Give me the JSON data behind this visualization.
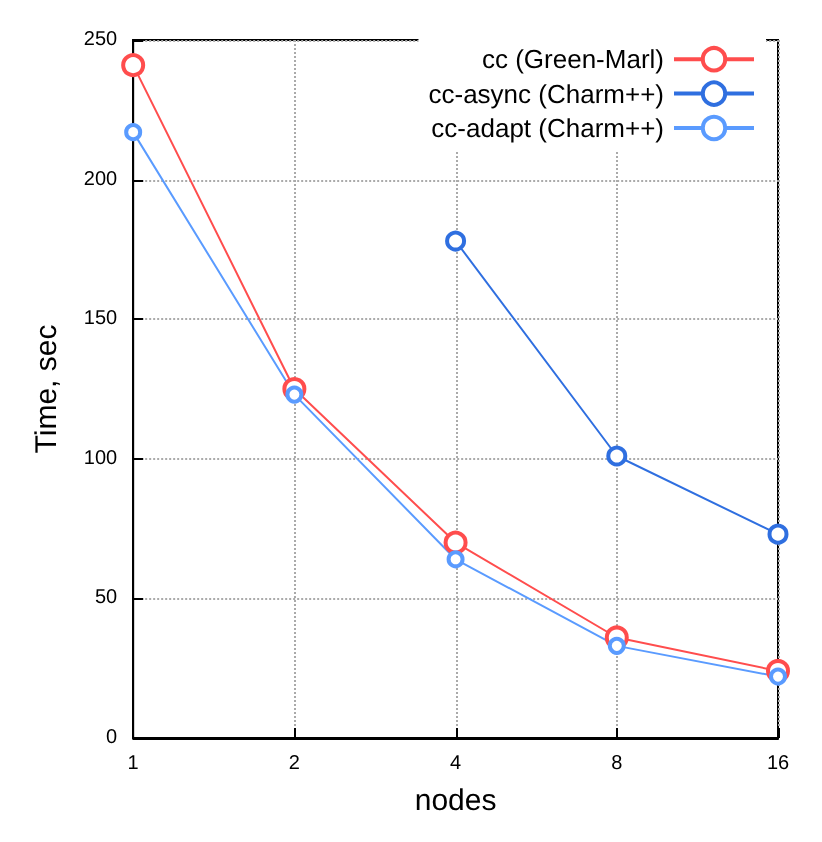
{
  "chart_data": {
    "type": "line",
    "xlabel": "nodes",
    "ylabel": "Time, sec",
    "log": "x",
    "xlim": [
      1,
      16
    ],
    "xticks": [
      1,
      2,
      4,
      8,
      16
    ],
    "ylim": [
      0,
      250
    ],
    "yticks": [
      0,
      50,
      100,
      150,
      200,
      250
    ],
    "grid": true,
    "legend": "top right",
    "marker": "circle",
    "line_style": "solid",
    "series": [
      {
        "name": "cc (Green-Marl)",
        "color": "#ff4d4d",
        "x": [
          1,
          2,
          4,
          8,
          16
        ],
        "values": [
          241,
          125,
          70,
          36,
          24
        ]
      },
      {
        "name": "cc-async (Charm++)",
        "color": "#2f6fe0",
        "x": [
          4,
          8,
          16
        ],
        "values": [
          178,
          101,
          73
        ]
      },
      {
        "name": "cc-adapt (Charm++)",
        "color": "#5a9bff",
        "x": [
          1,
          2,
          4,
          8,
          16
        ],
        "values": [
          217,
          123,
          64,
          33,
          22
        ]
      }
    ]
  }
}
